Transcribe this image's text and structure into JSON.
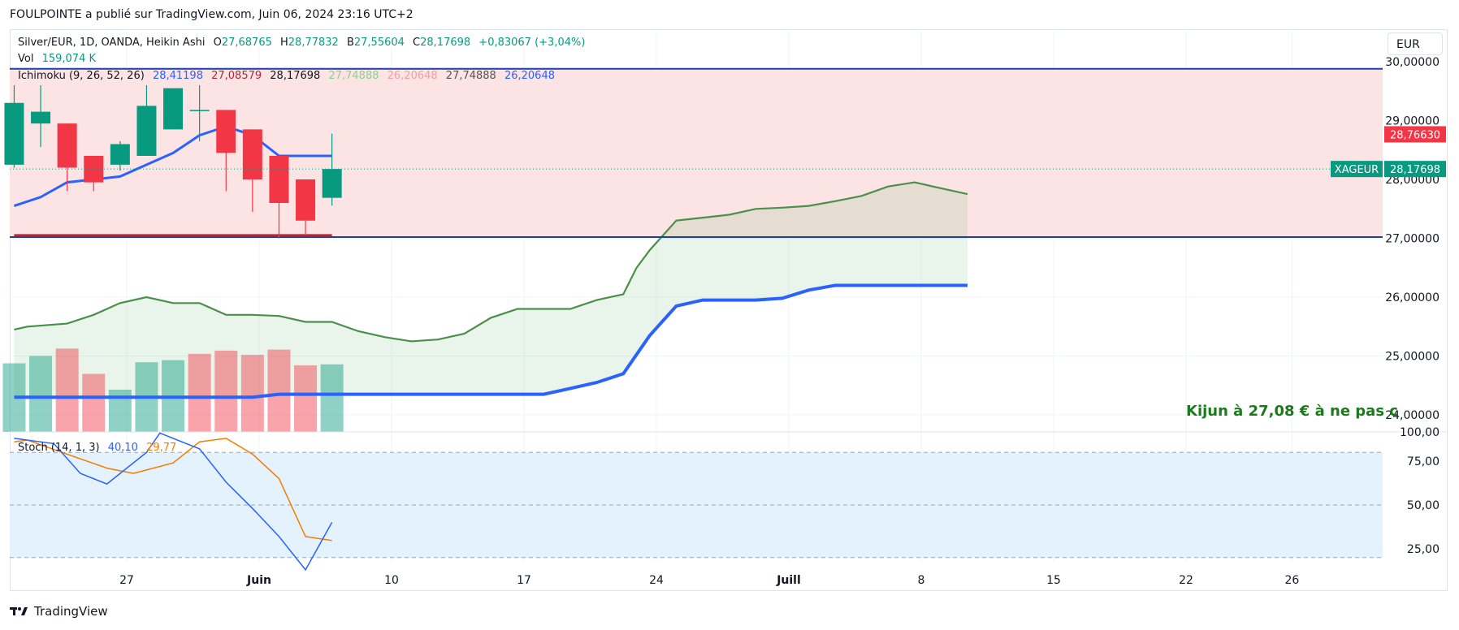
{
  "header": {
    "publish_line": "FOULPOINTE a publié sur TradingView.com, Juin 06, 2024 23:16 UTC+2"
  },
  "currency_button": "EUR",
  "legend": {
    "symbol": "Silver/EUR, 1D, OANDA, Heikin Ashi",
    "o_label": "O",
    "o": "27,68765",
    "h_label": "H",
    "h": "28,77832",
    "b_label": "B",
    "b": "27,55604",
    "c_label": "C",
    "c": "28,17698",
    "change": "+0,83067 (+3,04%)",
    "vol_label": "Vol",
    "vol": "159,074 K",
    "ichimoku_label": "Ichimoku (9, 26, 52, 26)",
    "ichimoku_values": [
      "28,41198",
      "27,08579",
      "28,17698",
      "27,74888",
      "26,20648",
      "27,74888",
      "26,20648"
    ],
    "stoch_label": "Stoch (14, 1, 3)",
    "stoch_k": "40,10",
    "stoch_d": "29,77"
  },
  "price_tags": {
    "high_value": "28,76630",
    "last_symbol": "XAGEUR",
    "last_value": "28,17698"
  },
  "annotation": "Kijun à 27,08 € à ne pas c",
  "footer": {
    "brand": "TradingView"
  },
  "colors": {
    "up": "#089981",
    "down": "#f23645",
    "tenkan": "#2962ff",
    "kijun": "#b22833",
    "span_a": "#5e9f5e",
    "span_b": "#2962ff",
    "zone": "#fce4e4",
    "stoch_k": "#2962ff",
    "stoch_d": "#f57c00",
    "stoch_band": "#e3f2fd"
  },
  "chart_data": {
    "type": "candlestick",
    "y_axis_ticks": [
      "30,00000",
      "29,00000",
      "28,00000",
      "27,00000",
      "26,00000",
      "25,00000",
      "24,00000",
      "100,00"
    ],
    "x_axis_ticks": [
      {
        "day": 0,
        "label": "27"
      },
      {
        "day": 5,
        "label": "Juin"
      },
      {
        "day": 10,
        "label": "10"
      },
      {
        "day": 15,
        "label": "17"
      },
      {
        "day": 20,
        "label": "24"
      },
      {
        "day": 25,
        "label": "Juill"
      },
      {
        "day": 30,
        "label": "8"
      },
      {
        "day": 35,
        "label": "15"
      },
      {
        "day": 40,
        "label": "22"
      },
      {
        "day": 44,
        "label": "26"
      }
    ],
    "horizontal_levels": [
      29.88,
      27.02
    ],
    "candles": [
      {
        "d": -4.25,
        "o": 28.25,
        "h": 29.6,
        "l": 28.2,
        "c": 29.3
      },
      {
        "d": -3.25,
        "o": 28.95,
        "h": 29.6,
        "l": 28.55,
        "c": 29.15
      },
      {
        "d": -2.25,
        "o": 28.95,
        "h": 28.95,
        "l": 27.8,
        "c": 28.2
      },
      {
        "d": -1.25,
        "o": 28.4,
        "h": 28.4,
        "l": 27.8,
        "c": 27.95
      },
      {
        "d": -0.25,
        "o": 28.25,
        "h": 28.65,
        "l": 28.15,
        "c": 28.6
      },
      {
        "d": 0.75,
        "o": 28.4,
        "h": 29.6,
        "l": 28.4,
        "c": 29.25
      },
      {
        "d": 1.75,
        "o": 28.85,
        "h": 29.55,
        "l": 28.85,
        "c": 29.55
      },
      {
        "d": 2.75,
        "o": 29.18,
        "h": 29.6,
        "l": 28.65,
        "c": 29.18
      },
      {
        "d": 3.75,
        "o": 29.18,
        "h": 29.18,
        "l": 27.8,
        "c": 28.45
      },
      {
        "d": 4.75,
        "o": 28.85,
        "h": 28.85,
        "l": 27.45,
        "c": 28.0
      },
      {
        "d": 5.75,
        "o": 28.4,
        "h": 28.4,
        "l": 27.0,
        "c": 27.6
      },
      {
        "d": 6.75,
        "o": 28.0,
        "h": 28.0,
        "l": 27.05,
        "c": 27.3
      },
      {
        "d": 7.75,
        "o": 27.68765,
        "h": 28.77832,
        "l": 27.55604,
        "c": 28.17698
      }
    ],
    "tenkan": {
      "x": [
        -4.25,
        -3.25,
        -2.25,
        -1.25,
        -0.25,
        0.75,
        1.75,
        2.75,
        3.75,
        4.75,
        5.75,
        6.75,
        7.75
      ],
      "y": [
        27.55,
        27.7,
        27.95,
        28.0,
        28.05,
        28.25,
        28.45,
        28.75,
        28.9,
        28.75,
        28.4,
        28.4,
        28.4
      ]
    },
    "kijun": {
      "x": [
        -4.25,
        7.75
      ],
      "y": [
        27.05,
        27.05
      ]
    },
    "span_a": {
      "x": [
        -4.25,
        -3.75,
        -2.25,
        -1.25,
        -0.25,
        0.75,
        1.75,
        2.75,
        3.75,
        4.75,
        5.75,
        6.75,
        7.75,
        8.75,
        9.75,
        10.75,
        11.75,
        12.75,
        13.75,
        14.75,
        15.75,
        16.75,
        17.75,
        18.75,
        19.25,
        19.75,
        20.75,
        21.75,
        22.75,
        23.75,
        24.75,
        25.75,
        26.75,
        27.75,
        28.75,
        29.75,
        30.75,
        31.75
      ],
      "y": [
        25.45,
        25.5,
        25.55,
        25.7,
        25.9,
        26.0,
        25.9,
        25.9,
        25.7,
        25.7,
        25.68,
        25.58,
        25.58,
        25.42,
        25.32,
        25.25,
        25.28,
        25.38,
        25.65,
        25.8,
        25.8,
        25.8,
        25.95,
        26.05,
        26.5,
        26.8,
        27.3,
        27.35,
        27.4,
        27.5,
        27.52,
        27.55,
        27.63,
        27.72,
        27.88,
        27.95,
        27.85,
        27.75
      ]
    },
    "span_b": {
      "x": [
        -4.25,
        3.75,
        4.75,
        5.75,
        6.75,
        7.75,
        8.75,
        9.75,
        10.75,
        11.75,
        12.75,
        13.75,
        14.75,
        15.75,
        16.75,
        17.75,
        18.75,
        19.75,
        20.75,
        21.75,
        22.75,
        23.75,
        24.75,
        25.75,
        26.75,
        27.75,
        28.75,
        29.75,
        30.75,
        31.75
      ],
      "y": [
        24.3,
        24.3,
        24.3,
        24.35,
        24.35,
        24.35,
        24.35,
        24.35,
        24.35,
        24.35,
        24.35,
        24.35,
        24.35,
        24.35,
        24.45,
        24.55,
        24.7,
        25.35,
        25.85,
        25.95,
        25.95,
        25.95,
        25.98,
        26.12,
        26.2,
        26.2,
        26.2,
        26.2,
        26.2,
        26.2
      ]
    },
    "volume": [
      {
        "d": -4.25,
        "v": 0.65,
        "up": true
      },
      {
        "d": -3.25,
        "v": 0.72,
        "up": true
      },
      {
        "d": -2.25,
        "v": 0.79,
        "up": false
      },
      {
        "d": -1.25,
        "v": 0.55,
        "up": false
      },
      {
        "d": -0.25,
        "v": 0.4,
        "up": true
      },
      {
        "d": 0.75,
        "v": 0.66,
        "up": true
      },
      {
        "d": 1.75,
        "v": 0.68,
        "up": true
      },
      {
        "d": 2.75,
        "v": 0.74,
        "up": false
      },
      {
        "d": 3.75,
        "v": 0.77,
        "up": false
      },
      {
        "d": 4.75,
        "v": 0.73,
        "up": false
      },
      {
        "d": 5.75,
        "v": 0.78,
        "up": false
      },
      {
        "d": 6.75,
        "v": 0.63,
        "up": false
      },
      {
        "d": 7.75,
        "v": 0.64,
        "up": true
      }
    ],
    "stoch_ticks": [
      "75,00",
      "50,00",
      "25,00"
    ],
    "stoch_levels": [
      80,
      20
    ],
    "stoch_k": {
      "x": [
        -4.25,
        -3.75,
        -2.75,
        -1.75,
        -0.75,
        0.75,
        1.25,
        2.75,
        3.75,
        4.75,
        5.75,
        6.75,
        7.75
      ],
      "y": [
        88,
        87,
        85,
        68,
        62,
        80,
        91,
        82,
        63,
        48,
        32,
        13,
        40.1
      ]
    },
    "stoch_d": {
      "x": [
        -4.25,
        -3.75,
        -2.25,
        -0.75,
        0.25,
        1.75,
        2.75,
        3.75,
        4.75,
        5.75,
        6.75,
        7.75
      ],
      "y": [
        86,
        87,
        79,
        71,
        68,
        74,
        86,
        88,
        79,
        65,
        32,
        29.77
      ]
    }
  }
}
